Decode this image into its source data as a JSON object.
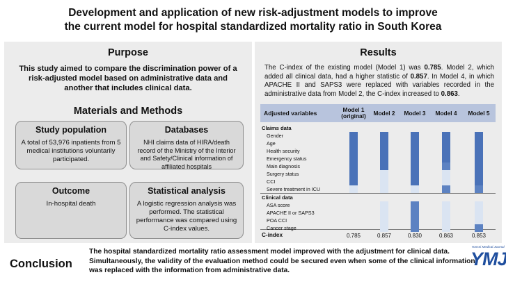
{
  "title": {
    "line1": "Development and application of new risk-adjustment models to improve",
    "line2": "the current model for hospital standardized mortality ratio in South Korea"
  },
  "purpose": {
    "heading": "Purpose",
    "text": "This study aimed to compare the discrimination power of a risk-adjusted model based on administrative data and another that includes clinical data."
  },
  "methods": {
    "heading": "Materials and Methods",
    "boxes": [
      {
        "title": "Study population",
        "body": "A total of 53,976 inpatients from 5 medical institutions voluntarily participated."
      },
      {
        "title": "Databases",
        "body": "NHI claims data of HIRA/death record of the Ministry of the Interior and Safety/Clinical information of affiliated hospitals"
      },
      {
        "title": "Outcome",
        "body": "In-hospital death"
      },
      {
        "title": "Statistical analysis",
        "body": "A logistic regression analysis was performed. The statistical performance was compared using C-index values."
      }
    ]
  },
  "results": {
    "heading": "Results",
    "text_parts": [
      "The C-index of the existing model (Model 1) was ",
      "0.785",
      ". Model 2, which added all clinical data, had a higher statistic of ",
      "0.857",
      ". In Model 4, in which APACHE II and SAPS3 were replaced with variables recorded in the administrative data from Model 2, the C-index increased to ",
      "0.863",
      "."
    ]
  },
  "table": {
    "header": {
      "first": "Adjusted variables",
      "models": [
        "Model 1 (original)",
        "Model 2",
        "Model 3",
        "Model 4",
        "Model 5"
      ]
    },
    "claims_label": "Claims data",
    "claims_rows": [
      {
        "label": "Gender",
        "levels": [
          3,
          3,
          3,
          3,
          3
        ]
      },
      {
        "label": "Age",
        "levels": [
          3,
          3,
          3,
          3,
          3
        ]
      },
      {
        "label": "Health security",
        "levels": [
          3,
          3,
          3,
          3,
          3
        ]
      },
      {
        "label": "Emergency status",
        "levels": [
          3,
          3,
          3,
          3,
          3
        ]
      },
      {
        "label": "Main diagnosis",
        "levels": [
          3,
          3,
          3,
          2,
          3
        ]
      },
      {
        "label": "Surgery status",
        "levels": [
          3,
          1,
          3,
          1,
          3
        ]
      },
      {
        "label": "CCI",
        "levels": [
          3,
          1,
          3,
          1,
          3
        ]
      },
      {
        "label": "Severe treatment in ICU",
        "levels": [
          1,
          1,
          1,
          2,
          2
        ]
      }
    ],
    "clinical_label": "Clinical data",
    "clinical_rows": [
      {
        "label": "ASA score",
        "levels": [
          0,
          1,
          2,
          1,
          1
        ]
      },
      {
        "label": "APACHE II or SAPS3",
        "levels": [
          0,
          1,
          2,
          1,
          1
        ]
      },
      {
        "label": "POA CCI",
        "levels": [
          0,
          1,
          2,
          1,
          1
        ]
      },
      {
        "label": "Cancer stage",
        "levels": [
          0,
          1,
          2,
          1,
          2
        ]
      }
    ],
    "cindex_label": "C-index",
    "cindex_values": [
      "0.785",
      "0.857",
      "0.830",
      "0.863",
      "0.853"
    ],
    "colors": {
      "level3": "#4a72b8",
      "level2": "#5c82c2",
      "level1": "#dae4f2",
      "header_bg": "#b8c4dd"
    }
  },
  "conclusion": {
    "label": "Conclusion",
    "text": "The hospital standardized mortality ratio assessment model improved with the adjustment for clinical data. Simultaneously, the validity of the evaluation method could be secured even when some of the clinical information was replaced with the information from administrative data."
  },
  "logo": {
    "small": "Yonsei Medical Journal",
    "big": "YMJ"
  }
}
